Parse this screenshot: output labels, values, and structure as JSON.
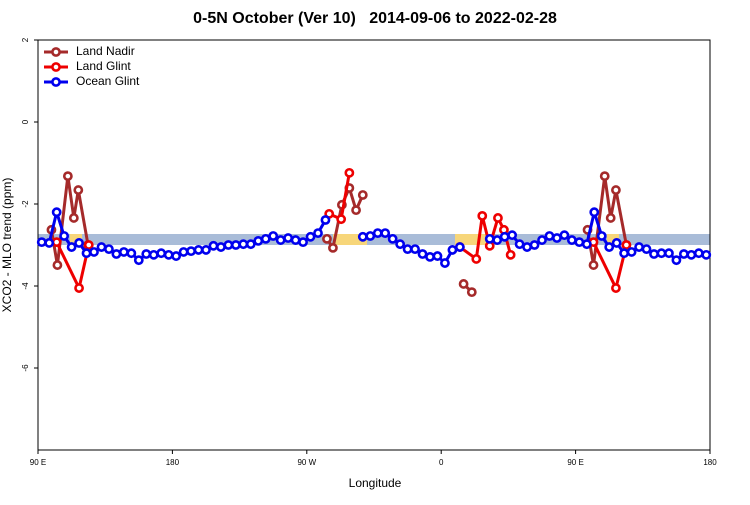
{
  "chart_data": {
    "type": "line",
    "title": "0-5N October (Ver 10)   2014-09-06 to 2022-02-28",
    "xlabel": "Longitude",
    "ylabel": "XCO2 - MLO trend (ppm)",
    "xlim": [
      90,
      540
    ],
    "ylim": [
      -8,
      2
    ],
    "xticks": [
      {
        "value": 90,
        "label": "90 E"
      },
      180,
      {
        "value": 270,
        "label": "90 W"
      },
      {
        "value": 360,
        "label": "0"
      },
      {
        "value": 450,
        "label": "90 E"
      },
      {
        "value": 540,
        "label": "180"
      }
    ],
    "yticks": [
      2,
      0,
      -2,
      -4,
      -6
    ],
    "legend": "top-left",
    "series": [
      {
        "name": "Land Nadir",
        "color": "#a52a2a",
        "x": [
          99,
          103,
          110,
          114,
          117,
          123.5,
          null,
          283.5,
          287.5,
          293.5,
          298.5,
          303,
          307.5,
          null,
          375,
          380.5,
          null,
          458,
          462,
          469.5,
          473.5,
          477,
          484
        ],
        "values": [
          -2.63,
          -3.49,
          -1.32,
          -2.34,
          -1.66,
          -3.0,
          null,
          -2.85,
          -3.07,
          -2.02,
          -1.61,
          -2.15,
          -1.78,
          null,
          -3.95,
          -4.15,
          null,
          -2.63,
          -3.49,
          -1.32,
          -2.34,
          -1.66,
          -3.0
        ]
      },
      {
        "name": "Land Glint",
        "color": "#ee0000",
        "x": [
          102.5,
          117.5,
          124,
          null,
          285,
          293,
          298.5,
          null,
          372.5,
          383.5,
          387.5,
          392.5,
          398,
          402,
          406.5,
          null,
          462,
          477,
          484
        ],
        "values": [
          -2.93,
          -4.05,
          -3.0,
          null,
          -2.24,
          -2.37,
          -1.24,
          null,
          -3.05,
          -3.34,
          -2.29,
          -3.02,
          -2.34,
          -2.63,
          -3.24,
          null,
          -2.93,
          -4.05,
          -3.0
        ]
      },
      {
        "name": "Ocean Glint",
        "color": "#0000ee",
        "x": [
          92.5,
          97.5,
          102.5,
          107.5,
          112.5,
          117.5,
          122.5,
          127.5,
          132.5,
          137.5,
          142.5,
          147.5,
          152.5,
          157.5,
          162.5,
          167.5,
          172.5,
          177.5,
          182.5,
          187.5,
          192.5,
          197.5,
          202.5,
          207.5,
          212.5,
          217.5,
          222.5,
          227.5,
          232.5,
          237.5,
          242.5,
          247.5,
          252.5,
          257.5,
          262.5,
          267.5,
          272.5,
          277.5,
          282.5,
          null,
          307.5,
          312.5,
          317.5,
          322.5,
          327.5,
          332.5,
          337.5,
          342.5,
          347.5,
          352.5,
          357.5,
          362.5,
          367.5,
          372.5,
          null,
          392.5,
          397.5,
          402.5,
          407.5,
          412.5,
          417.5,
          422.5,
          427.5,
          432.5,
          437.5,
          442.5,
          447.5,
          452.5,
          457.5,
          462.5,
          467.5,
          472.5,
          477.5,
          482.5,
          487.5,
          492.5,
          497.5,
          502.5,
          507.5,
          512.5,
          517.5,
          522.5,
          527.5,
          532.5,
          537.5
        ],
        "values": [
          -2.93,
          -2.95,
          -2.2,
          -2.78,
          -3.05,
          -2.95,
          -3.2,
          -3.17,
          -3.05,
          -3.1,
          -3.22,
          -3.17,
          -3.2,
          -3.37,
          -3.22,
          -3.24,
          -3.2,
          -3.24,
          -3.27,
          -3.17,
          -3.15,
          -3.12,
          -3.12,
          -3.02,
          -3.05,
          -3.0,
          -3.0,
          -2.98,
          -2.98,
          -2.9,
          -2.85,
          -2.78,
          -2.88,
          -2.83,
          -2.88,
          -2.93,
          -2.8,
          -2.71,
          -2.39,
          null,
          -2.8,
          -2.78,
          -2.71,
          -2.71,
          -2.85,
          -2.98,
          -3.1,
          -3.1,
          -3.22,
          -3.29,
          -3.27,
          -3.44,
          -3.12,
          -3.05,
          null,
          -2.85,
          -2.88,
          -2.8,
          -2.76,
          -2.98,
          -3.05,
          -3.0,
          -2.88,
          -2.78,
          -2.83,
          -2.76,
          -2.88,
          -2.93,
          -2.98,
          -2.2,
          -2.78,
          -3.05,
          -2.95,
          -3.2,
          -3.17,
          -3.05,
          -3.1,
          -3.22,
          -3.2,
          -3.2,
          -3.37,
          -3.22,
          -3.24,
          -3.2,
          -3.24
        ]
      }
    ]
  }
}
